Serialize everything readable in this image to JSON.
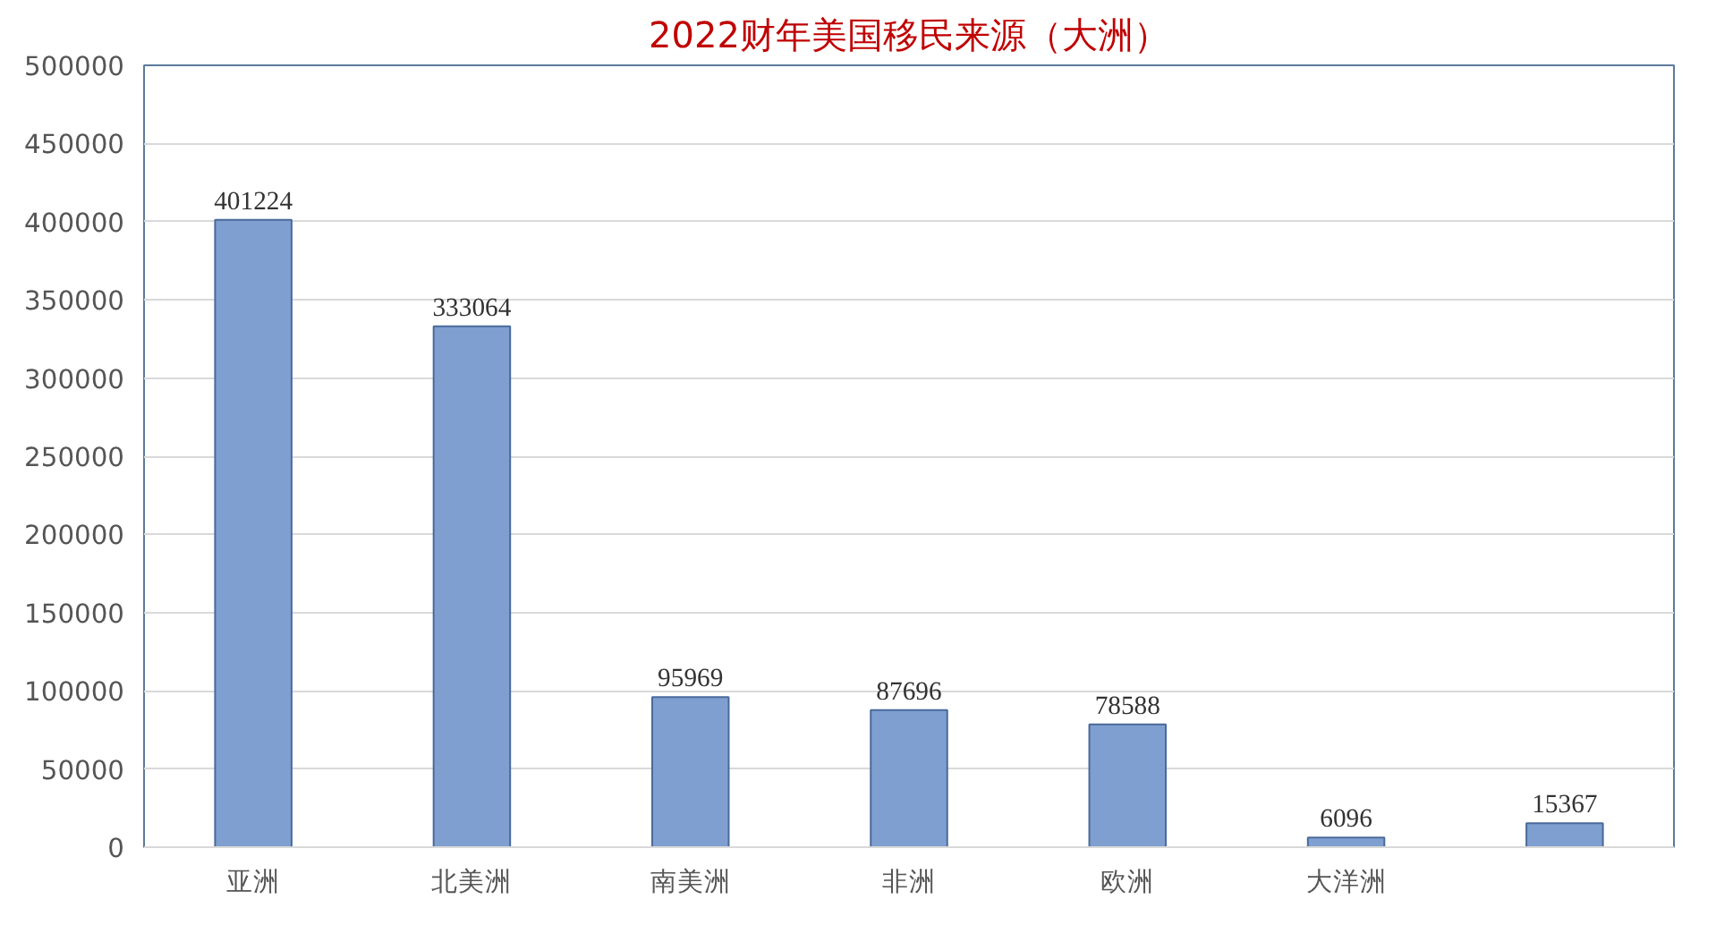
{
  "chart_data": {
    "type": "bar",
    "title": "2022财年美国移民来源（大洲）",
    "categories": [
      "亚洲",
      "北美洲",
      "南美洲",
      "非洲",
      "欧洲",
      "大洋洲",
      null
    ],
    "values": [
      401224,
      333064,
      95969,
      87696,
      78588,
      6096,
      15367
    ],
    "color": "#7f9fd0",
    "ylim": [
      0,
      500000
    ],
    "yticks": [
      0,
      50000,
      100000,
      150000,
      200000,
      250000,
      300000,
      350000,
      400000,
      450000,
      500000
    ],
    "grid": "y",
    "data_labels": true
  }
}
